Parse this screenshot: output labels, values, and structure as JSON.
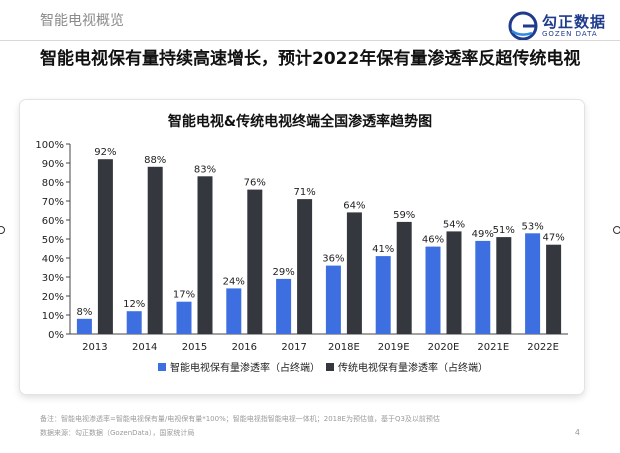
{
  "header": {
    "section_label": "智能电视概览",
    "headline": "智能电视保有量持续高速增长，预计2022年保有量渗透率反超传统电视",
    "logo_cn": "勾正数据",
    "logo_en": "GOZEN DATA"
  },
  "colors": {
    "smart_series": "#3d6fe0",
    "traditional_series": "#34373d"
  },
  "chart_data": {
    "type": "bar",
    "title": "智能电视&传统电视终端全国渗透率趋势图",
    "categories": [
      "2013",
      "2014",
      "2015",
      "2016",
      "2017",
      "2018E",
      "2019E",
      "2020E",
      "2021E",
      "2022E"
    ],
    "series": [
      {
        "name": "智能电视保有量渗透率（占终端）",
        "values": [
          8,
          12,
          17,
          24,
          29,
          36,
          41,
          46,
          49,
          53
        ]
      },
      {
        "name": "传统电视保有量渗透率（占终端）",
        "values": [
          92,
          88,
          83,
          76,
          71,
          64,
          59,
          54,
          51,
          47
        ]
      }
    ],
    "yticks": [
      "0%",
      "10%",
      "20%",
      "30%",
      "40%",
      "50%",
      "60%",
      "70%",
      "80%",
      "90%",
      "100%"
    ],
    "ylim": [
      0,
      100
    ],
    "unit": "%",
    "grid": false,
    "legend": "bottom"
  },
  "footer": {
    "note": "备注：智能电视渗透率=智能电视保有量/电视保有量*100%；智能电视指智能电视一体机；2018E为预估值，基于Q3及以前预估",
    "source": "数据来源：勾正数据（GozenData），国家统计局",
    "page": "4"
  }
}
